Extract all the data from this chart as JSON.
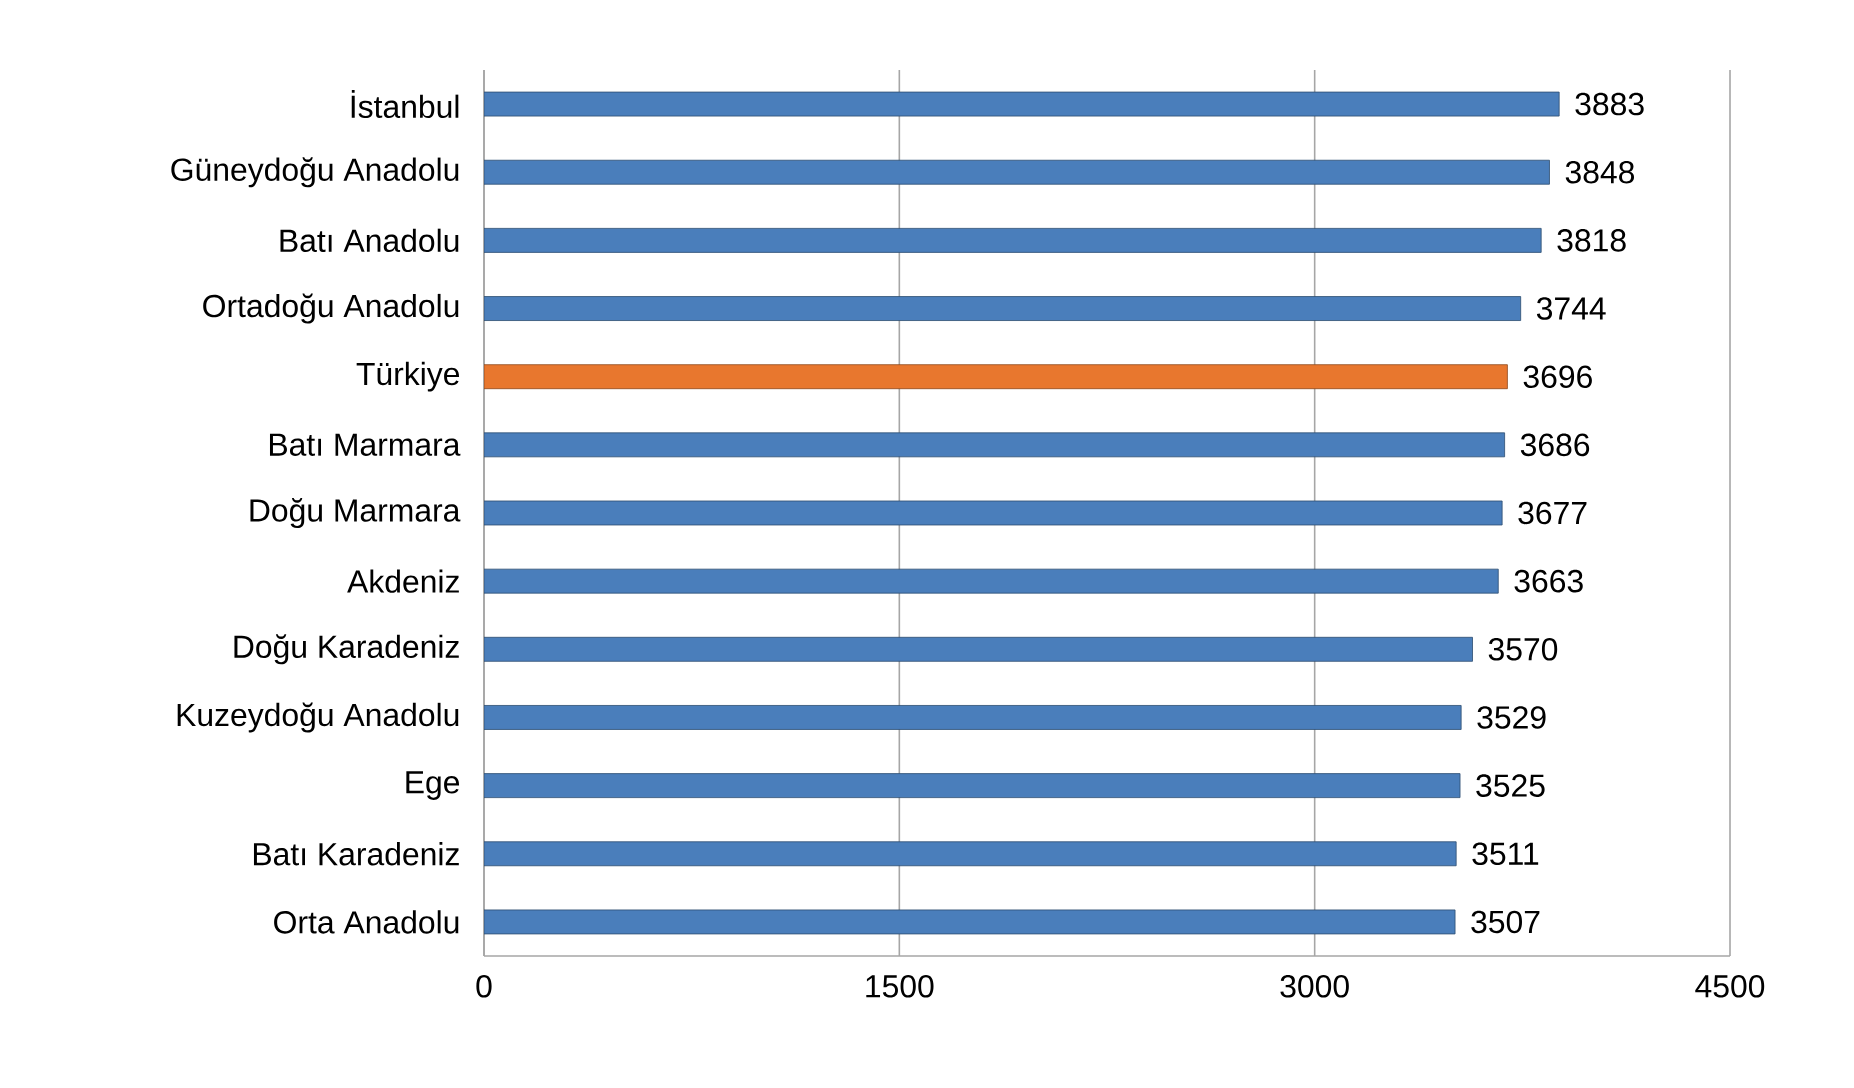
{
  "chart_data": {
    "type": "bar",
    "orientation": "horizontal",
    "categories": [
      "İstanbul",
      "Güneydoğu Anadolu",
      "Batı Anadolu",
      "Ortadoğu Anadolu",
      "Türkiye",
      "Batı Marmara",
      "Doğu Marmara",
      "Akdeniz",
      "Doğu Karadeniz",
      "Kuzeydoğu Anadolu",
      "Ege",
      "Batı Karadeniz",
      "Orta Anadolu"
    ],
    "values": [
      3883,
      3848,
      3818,
      3744,
      3696,
      3686,
      3677,
      3663,
      3570,
      3529,
      3525,
      3511,
      3507
    ],
    "colors": [
      "#4a7ebb",
      "#4a7ebb",
      "#4a7ebb",
      "#4a7ebb",
      "#e8772e",
      "#4a7ebb",
      "#4a7ebb",
      "#4a7ebb",
      "#4a7ebb",
      "#4a7ebb",
      "#4a7ebb",
      "#4a7ebb",
      "#4a7ebb"
    ],
    "xlim": [
      0,
      4500
    ],
    "xticks": [
      0,
      1500,
      3000,
      4500
    ],
    "grid": "x",
    "data_labels": true
  }
}
